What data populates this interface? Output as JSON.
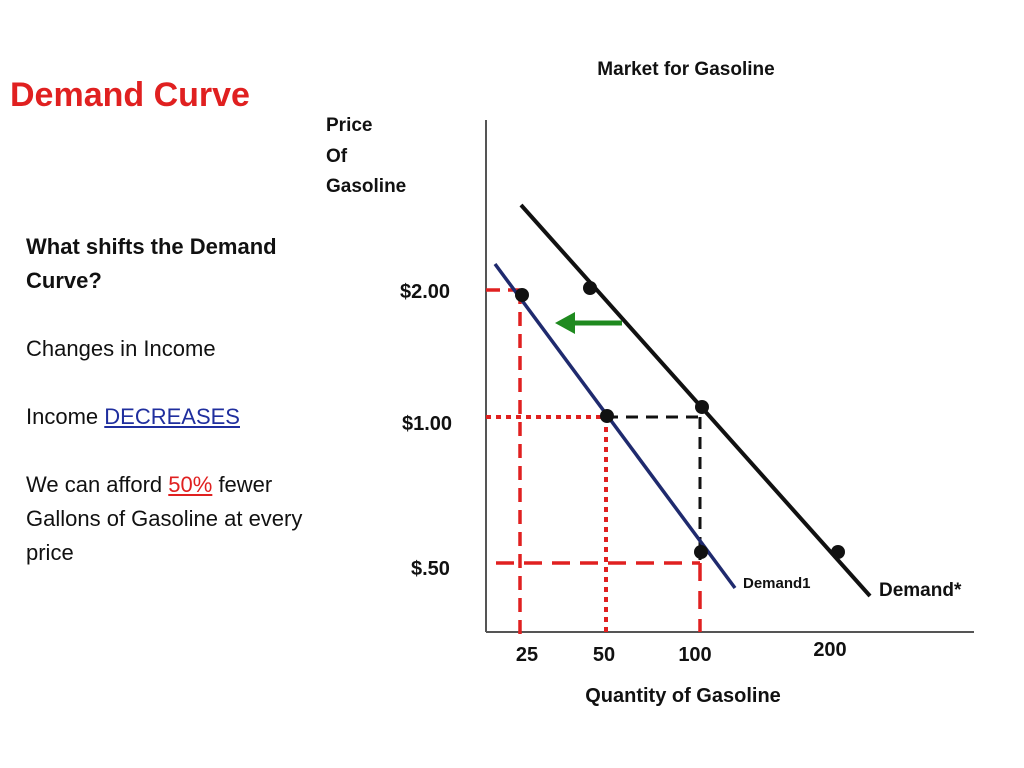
{
  "slide": {
    "title": "Demand Curve",
    "question": "What shifts the Demand Curve?",
    "factor": "Changes in Income",
    "income_prefix": "Income ",
    "income_change": "DECREASES ",
    "afford_prefix": "We can afford ",
    "afford_percent": "50%",
    "afford_suffix": " fewer Gallons of Gasoline at every price"
  },
  "colors": {
    "title_red": "#e02020",
    "guide_red": "#e02020",
    "demand1_navy": "#1f2a6e",
    "arrow_green": "#1f8a1f",
    "link_blue": "#1f2e9e"
  },
  "chart_data": {
    "type": "line",
    "title": "Market for Gasoline",
    "ylabel_lines": [
      "Price",
      "Of",
      "Gasoline"
    ],
    "xlabel": "Quantity of Gasoline",
    "y_ticks": [
      "$2.00",
      "$1.00",
      "$.50"
    ],
    "x_ticks": [
      "25",
      "50",
      "100",
      "200"
    ],
    "series": [
      {
        "name": "Demand*",
        "points": [
          {
            "quantity": 50,
            "price": 2.0
          },
          {
            "quantity": 100,
            "price": 1.0
          },
          {
            "quantity": 200,
            "price": 0.5
          }
        ]
      },
      {
        "name": "Demand1",
        "points": [
          {
            "quantity": 25,
            "price": 2.0
          },
          {
            "quantity": 50,
            "price": 1.0
          },
          {
            "quantity": 100,
            "price": 0.5
          }
        ]
      }
    ],
    "shift_arrow": "left",
    "grid": false
  }
}
